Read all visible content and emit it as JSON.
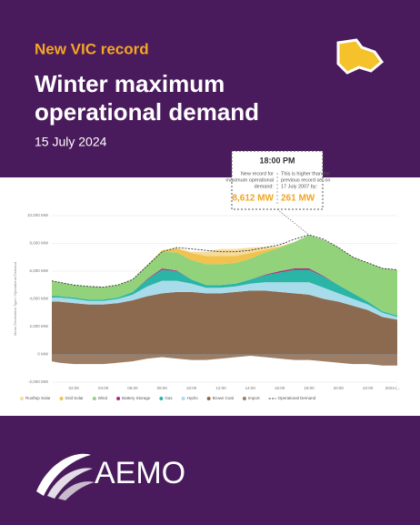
{
  "header": {
    "kicker": "New VIC record",
    "title_line1": "Winter maximum",
    "title_line2": "operational demand",
    "date": "15 July 2024"
  },
  "callout": {
    "time": "18:00 PM",
    "left_text": [
      "New record for",
      "maximum operational",
      "demand:"
    ],
    "left_value": "8,612 MW",
    "right_text": [
      "This is higher than the",
      "previous record set on",
      "17 July 2007 by:"
    ],
    "right_value": "261 MW"
  },
  "logo": "AEMO",
  "chart_data": {
    "type": "stacked_area",
    "y_label": "Mean Generation Type / Operational Demand",
    "x": [
      0.5,
      1,
      2,
      3,
      4,
      5,
      6,
      7,
      8,
      9,
      10,
      11,
      12,
      13,
      14,
      15,
      16,
      17,
      18,
      19,
      20,
      21,
      22,
      23,
      24
    ],
    "xlim": [
      0.5,
      24
    ],
    "xticks": [
      {
        "value": 2,
        "label": "02:00"
      },
      {
        "value": 4,
        "label": "04:00"
      },
      {
        "value": 6,
        "label": "06:00"
      },
      {
        "value": 8,
        "label": "08:00"
      },
      {
        "value": 10,
        "label": "10:00"
      },
      {
        "value": 12,
        "label": "12:00"
      },
      {
        "value": 14,
        "label": "14:00"
      },
      {
        "value": 16,
        "label": "16:00"
      },
      {
        "value": 18,
        "label": "18:00"
      },
      {
        "value": 20,
        "label": "20:00"
      },
      {
        "value": 22,
        "label": "22:00"
      },
      {
        "value": 23.7,
        "label": "2024-(..."
      }
    ],
    "ylim": [
      -2000,
      10000
    ],
    "yticks": [
      {
        "value": -2000,
        "label": "-2,000 MW"
      },
      {
        "value": 0,
        "label": "0 MW"
      },
      {
        "value": 2000,
        "label": "2,000 MW"
      },
      {
        "value": 4000,
        "label": "4,000 MW"
      },
      {
        "value": 6000,
        "label": "6,000 MW"
      },
      {
        "value": 8000,
        "label": "8,000 MW"
      },
      {
        "value": 10000,
        "label": "10,000 MW"
      }
    ],
    "grid": true,
    "series": [
      {
        "name": "Rooftop Solar",
        "color": "#f6dc9a",
        "values": [
          0,
          0,
          0,
          0,
          0,
          0,
          0,
          0,
          0,
          0,
          100,
          300,
          500,
          500,
          400,
          200,
          50,
          0,
          0,
          0,
          0,
          0,
          0,
          0,
          0
        ]
      },
      {
        "name": "Grid Solar",
        "color": "#f1c24e",
        "values": [
          0,
          0,
          0,
          0,
          0,
          0,
          0,
          0,
          100,
          300,
          500,
          600,
          600,
          500,
          400,
          200,
          50,
          0,
          0,
          0,
          0,
          0,
          0,
          0,
          0
        ]
      },
      {
        "name": "Wind",
        "color": "#92d27a",
        "values": [
          1100,
          1000,
          900,
          950,
          900,
          900,
          900,
          1000,
          1200,
          1300,
          1400,
          1500,
          1500,
          1500,
          1500,
          1600,
          1700,
          1900,
          2400,
          2600,
          2700,
          2600,
          2800,
          3100,
          3300
        ]
      },
      {
        "name": "Battery Storage",
        "color": "#b0297a",
        "values": [
          0,
          0,
          0,
          0,
          0,
          0,
          0,
          50,
          100,
          50,
          0,
          0,
          0,
          0,
          0,
          50,
          100,
          100,
          100,
          50,
          0,
          0,
          0,
          0,
          0
        ]
      },
      {
        "name": "Gas",
        "color": "#2bb5a6",
        "values": [
          100,
          100,
          100,
          100,
          100,
          100,
          200,
          500,
          800,
          700,
          300,
          200,
          200,
          200,
          300,
          500,
          700,
          900,
          900,
          800,
          600,
          400,
          200,
          100,
          100
        ]
      },
      {
        "name": "Hydro",
        "color": "#a9dcea",
        "values": [
          300,
          300,
          300,
          250,
          250,
          300,
          400,
          700,
          900,
          800,
          600,
          400,
          400,
          400,
          500,
          600,
          700,
          800,
          900,
          800,
          600,
          500,
          400,
          300,
          200
        ]
      },
      {
        "name": "Brown Coal",
        "color": "#8b6a50",
        "values": [
          3800,
          3800,
          3700,
          3600,
          3600,
          3700,
          3900,
          4200,
          4400,
          4500,
          4500,
          4400,
          4400,
          4500,
          4600,
          4600,
          4500,
          4400,
          4300,
          4000,
          3800,
          3500,
          3200,
          2700,
          2500
        ]
      },
      {
        "name": "Import",
        "color": "#9c7d66",
        "values": [
          -500,
          -600,
          -700,
          -700,
          -700,
          -600,
          -500,
          -300,
          -200,
          -300,
          -400,
          -400,
          -300,
          -200,
          -100,
          -200,
          -300,
          -400,
          -400,
          -500,
          -600,
          -700,
          -700,
          -800,
          -800
        ]
      },
      {
        "name": "Operational Demand",
        "color": "#333333",
        "kind": "line",
        "values": [
          5300,
          5200,
          5000,
          4900,
          4850,
          5000,
          5400,
          6400,
          7400,
          7700,
          7600,
          7500,
          7400,
          7400,
          7500,
          7700,
          7900,
          8300,
          8612,
          8300,
          7700,
          7000,
          6600,
          6200,
          6100
        ]
      }
    ]
  }
}
